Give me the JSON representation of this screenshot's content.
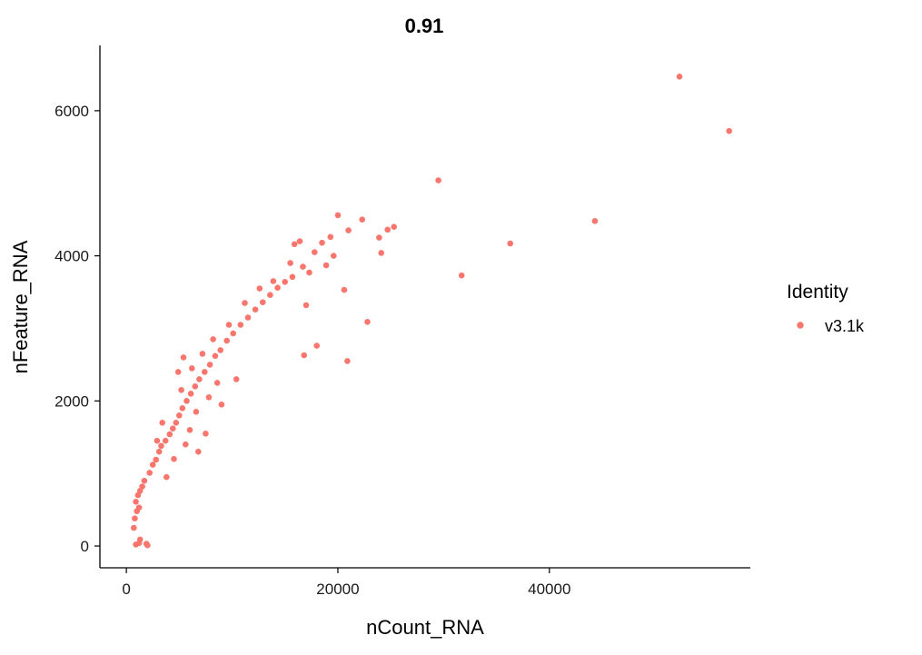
{
  "chart_data": {
    "type": "scatter",
    "title": "0.91",
    "xlabel": "nCount_RNA",
    "ylabel": "nFeature_RNA",
    "xlim": [
      -2500,
      59000
    ],
    "ylim": [
      -300,
      6900
    ],
    "x_ticks": [
      0,
      20000,
      40000
    ],
    "x_tick_labels": [
      "0",
      "20000",
      "40000"
    ],
    "y_ticks": [
      0,
      2000,
      4000,
      6000
    ],
    "y_tick_labels": [
      "0",
      "2000",
      "4000",
      "6000"
    ],
    "grid": false,
    "legend": {
      "title": "Identity",
      "position": "right",
      "entries": [
        "v3.1k"
      ]
    },
    "series": [
      {
        "name": "v3.1k",
        "color": "#F8766D",
        "points": [
          [
            52300,
            6470
          ],
          [
            57000,
            5720
          ],
          [
            29500,
            5040
          ],
          [
            44300,
            4480
          ],
          [
            36300,
            4170
          ],
          [
            31700,
            3730
          ],
          [
            22800,
            3090
          ],
          [
            20600,
            3530
          ],
          [
            18000,
            2760
          ],
          [
            16800,
            2630
          ],
          [
            20900,
            2550
          ],
          [
            25300,
            4400
          ],
          [
            24700,
            4360
          ],
          [
            23900,
            4250
          ],
          [
            24100,
            4040
          ],
          [
            22300,
            4500
          ],
          [
            20000,
            4560
          ],
          [
            21000,
            4350
          ],
          [
            19300,
            4260
          ],
          [
            18500,
            4180
          ],
          [
            17800,
            4050
          ],
          [
            19600,
            4000
          ],
          [
            18900,
            3870
          ],
          [
            17300,
            3770
          ],
          [
            16700,
            3850
          ],
          [
            17000,
            3320
          ],
          [
            15900,
            4160
          ],
          [
            16400,
            4200
          ],
          [
            15500,
            3900
          ],
          [
            900,
            20
          ],
          [
            1200,
            40
          ],
          [
            1900,
            30
          ],
          [
            2000,
            10
          ],
          [
            1300,
            90
          ],
          [
            700,
            250
          ],
          [
            800,
            380
          ],
          [
            1000,
            480
          ],
          [
            1200,
            530
          ],
          [
            900,
            610
          ],
          [
            1100,
            700
          ],
          [
            1300,
            760
          ],
          [
            1500,
            820
          ],
          [
            1700,
            900
          ],
          [
            2200,
            1010
          ],
          [
            2500,
            1120
          ],
          [
            2800,
            1190
          ],
          [
            3100,
            1300
          ],
          [
            3300,
            1380
          ],
          [
            3700,
            1450
          ],
          [
            4100,
            1540
          ],
          [
            4400,
            1620
          ],
          [
            4700,
            1700
          ],
          [
            5000,
            1800
          ],
          [
            5300,
            1900
          ],
          [
            5700,
            2000
          ],
          [
            6100,
            2100
          ],
          [
            6500,
            2200
          ],
          [
            6900,
            2300
          ],
          [
            7400,
            2400
          ],
          [
            7900,
            2500
          ],
          [
            8400,
            2620
          ],
          [
            8900,
            2700
          ],
          [
            9500,
            2830
          ],
          [
            10100,
            2930
          ],
          [
            10800,
            3050
          ],
          [
            11500,
            3150
          ],
          [
            12200,
            3260
          ],
          [
            12900,
            3360
          ],
          [
            13600,
            3460
          ],
          [
            14300,
            3560
          ],
          [
            15000,
            3640
          ],
          [
            15700,
            3710
          ],
          [
            4900,
            2400
          ],
          [
            5400,
            2600
          ],
          [
            6800,
            1300
          ],
          [
            7500,
            1550
          ],
          [
            9000,
            1950
          ],
          [
            10400,
            2300
          ],
          [
            3800,
            950
          ],
          [
            4500,
            1200
          ],
          [
            6200,
            2450
          ],
          [
            5200,
            2150
          ],
          [
            7200,
            2650
          ],
          [
            8200,
            2850
          ],
          [
            9700,
            3050
          ],
          [
            11200,
            3350
          ],
          [
            12600,
            3550
          ],
          [
            13900,
            3650
          ],
          [
            3400,
            1700
          ],
          [
            2900,
            1450
          ],
          [
            8600,
            2250
          ],
          [
            7800,
            2050
          ],
          [
            6600,
            1850
          ],
          [
            6000,
            1600
          ],
          [
            5600,
            1400
          ]
        ]
      }
    ]
  }
}
